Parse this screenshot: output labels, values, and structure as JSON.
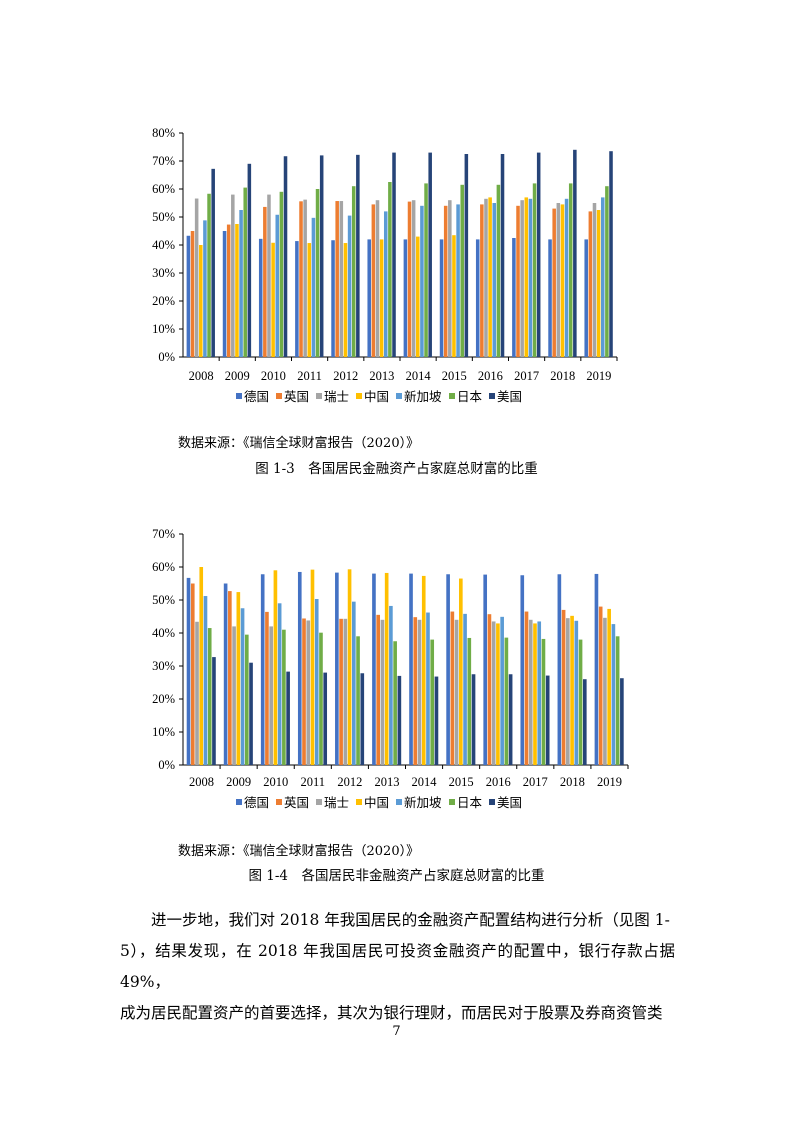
{
  "chart_data": [
    {
      "type": "bar",
      "title": "",
      "categories": [
        "2008",
        "2009",
        "2010",
        "2011",
        "2012",
        "2013",
        "2014",
        "2015",
        "2016",
        "2017",
        "2018",
        "2019"
      ],
      "yticks": [
        "0%",
        "10%",
        "20%",
        "30%",
        "40%",
        "50%",
        "60%",
        "70%",
        "80%"
      ],
      "ylim": [
        0,
        80
      ],
      "legend_position": "bottom",
      "series": [
        {
          "name": "德国",
          "color": "#4472C4",
          "values": [
            43.3,
            45,
            42.2,
            41.4,
            41.7,
            42,
            42,
            42,
            42,
            42.5,
            42,
            42
          ]
        },
        {
          "name": "英国",
          "color": "#ED7D31",
          "values": [
            45,
            47.3,
            53.6,
            55.6,
            55.7,
            54.5,
            55.5,
            54,
            54.5,
            54,
            53,
            52
          ]
        },
        {
          "name": "瑞士",
          "color": "#A5A5A5",
          "values": [
            56.6,
            58,
            58,
            56.2,
            55.7,
            56,
            56,
            56,
            56.5,
            56,
            55,
            55
          ]
        },
        {
          "name": "中国",
          "color": "#FFC000",
          "values": [
            40,
            47.5,
            40.8,
            40.7,
            40.7,
            42,
            43,
            43.5,
            57,
            57,
            54.5,
            52.5
          ]
        },
        {
          "name": "新加坡",
          "color": "#5B9BD5",
          "values": [
            48.8,
            52.5,
            50.8,
            49.7,
            50.5,
            52,
            54,
            54.5,
            55,
            56.5,
            56.5,
            57
          ]
        },
        {
          "name": "日本",
          "color": "#70AD47",
          "values": [
            58.3,
            60.5,
            59,
            60,
            61,
            62.5,
            62,
            61.5,
            61.5,
            62,
            62,
            61
          ]
        },
        {
          "name": "美国",
          "color": "#264478",
          "values": [
            67.2,
            69,
            71.7,
            72,
            72.2,
            73,
            73,
            72.5,
            72.5,
            73,
            74,
            73.5
          ]
        }
      ]
    },
    {
      "type": "bar",
      "title": "",
      "categories": [
        "2008",
        "2009",
        "2010",
        "2011",
        "2012",
        "2013",
        "2014",
        "2015",
        "2016",
        "2017",
        "2018",
        "2019"
      ],
      "yticks": [
        "0%",
        "10%",
        "20%",
        "30%",
        "40%",
        "50%",
        "60%",
        "70%"
      ],
      "ylim": [
        0,
        70
      ],
      "legend_position": "bottom",
      "series": [
        {
          "name": "德国",
          "color": "#4472C4",
          "values": [
            56.7,
            55,
            57.8,
            58.5,
            58.3,
            58,
            58,
            57.8,
            57.7,
            57.5,
            57.8,
            57.9
          ]
        },
        {
          "name": "英国",
          "color": "#ED7D31",
          "values": [
            55,
            52.7,
            46.4,
            44.4,
            44.3,
            45.5,
            44.8,
            46.5,
            45.7,
            46.5,
            47,
            48
          ]
        },
        {
          "name": "瑞士",
          "color": "#A5A5A5",
          "values": [
            43.4,
            42,
            42,
            43.8,
            44.3,
            44,
            44,
            44,
            43.5,
            44,
            44.5,
            44.6
          ]
        },
        {
          "name": "中国",
          "color": "#FFC000",
          "values": [
            60,
            52.4,
            59,
            59.2,
            59.3,
            58.2,
            57.3,
            56.5,
            42.9,
            42.9,
            45.2,
            47.3
          ]
        },
        {
          "name": "新加坡",
          "color": "#5B9BD5",
          "values": [
            51.2,
            47.5,
            49,
            50.3,
            49.5,
            48.2,
            46.2,
            45.8,
            44.9,
            43.5,
            43.7,
            42.7
          ]
        },
        {
          "name": "日本",
          "color": "#70AD47",
          "values": [
            41.5,
            39.5,
            41,
            40.1,
            39,
            37.5,
            38,
            38.5,
            38.6,
            38.2,
            38,
            39
          ]
        },
        {
          "name": "美国",
          "color": "#264478",
          "values": [
            32.7,
            31,
            28.3,
            28,
            27.8,
            27,
            26.8,
            27.5,
            27.5,
            27.1,
            26,
            26.3
          ]
        }
      ]
    }
  ],
  "figures": [
    {
      "source": "数据来源：《瑞信全球财富报告（2020）》",
      "caption": "图 1-3　各国居民金融资产占家庭总财富的比重"
    },
    {
      "source": "数据来源：《瑞信全球财富报告（2020）》",
      "caption": "图 1-4　各国居民非金融资产占家庭总财富的比重"
    }
  ],
  "paragraph": [
    "　　进一步地，我们对 2018 年我国居民的金融资产配置结构进行分析（见图 1-",
    "5），结果发现，在 2018 年我国居民可投资金融资产的配置中，银行存款占据 49%，",
    "成为居民配置资产的首要选择，其次为银行理财，而居民对于股票及券商资管类"
  ],
  "page_number": "7"
}
